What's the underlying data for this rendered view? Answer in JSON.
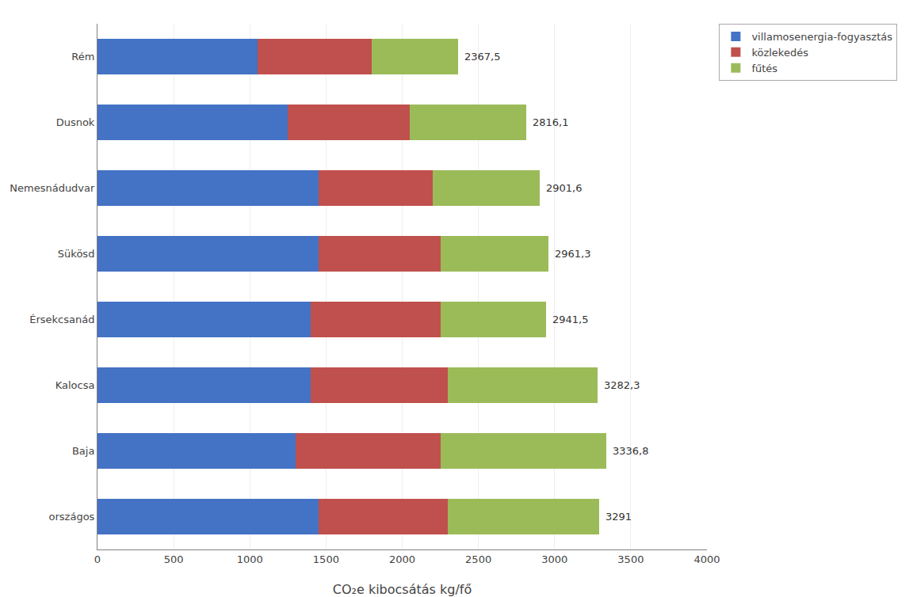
{
  "chart_data": {
    "type": "bar",
    "orientation": "horizontal",
    "stacked": true,
    "categories": [
      "országos",
      "Baja",
      "Kalocsa",
      "Érsekcsanád",
      "Sükösd",
      "Nemesnádudvar",
      "Dusnok",
      "Rém"
    ],
    "series": [
      {
        "name": "villamosenergia-fogyasztás",
        "color": "#4472C4",
        "values": [
          1450,
          1300,
          1400,
          1400,
          1450,
          1450,
          1250,
          1050
        ]
      },
      {
        "name": "közlekedés",
        "color": "#C0504D",
        "values": [
          850,
          950,
          900,
          850,
          800,
          750,
          800,
          750
        ]
      },
      {
        "name": "fűtés",
        "color": "#9BBB59",
        "values": [
          991,
          1086.8,
          982.3,
          691.5,
          711.3,
          701.6,
          766.1,
          567.5
        ]
      }
    ],
    "totals": [
      3291,
      3336.8,
      3282.3,
      2941.5,
      2961.3,
      2901.6,
      2816.1,
      2367.5
    ],
    "total_labels": [
      "3291",
      "3336,8",
      "3282,3",
      "2941,5",
      "2961,3",
      "2901,6",
      "2816,1",
      "2367,5"
    ],
    "xlabel": "CO₂e kibocsátás kg/fő",
    "xlim": [
      0,
      4000
    ],
    "xticks": [
      0,
      500,
      1000,
      1500,
      2000,
      2500,
      3000,
      3500,
      4000
    ],
    "grid": "x",
    "legend": "upper right"
  }
}
